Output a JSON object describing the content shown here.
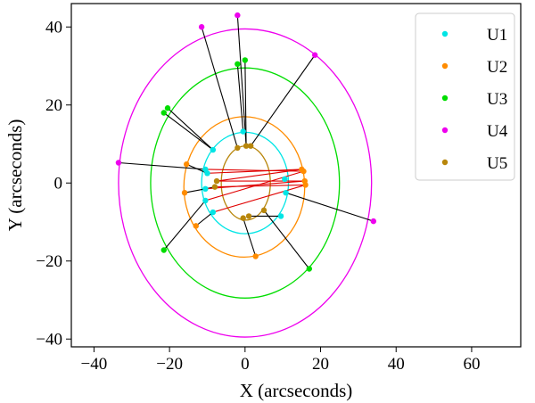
{
  "chart_data": {
    "type": "scatter",
    "xlabel": "X (arcseconds)",
    "ylabel": "Y (arcseconds)",
    "xlim": [
      -46,
      73
    ],
    "ylim": [
      -42,
      46
    ],
    "xticks": [
      -40,
      -20,
      0,
      20,
      40,
      60
    ],
    "yticks": [
      -40,
      -20,
      0,
      20,
      40
    ],
    "legend_position": "top-right",
    "orbit_ellipses": [
      {
        "series": "U1",
        "color": "#00e5e5",
        "center": [
          0,
          0
        ],
        "rx": 11.5,
        "ry": 13.0
      },
      {
        "series": "U2",
        "color": "#ff8c00",
        "center": [
          -0.2,
          -1.0
        ],
        "rx": 16.0,
        "ry": 18.0
      },
      {
        "series": "U3",
        "color": "#00dd00",
        "center": [
          0,
          0
        ],
        "rx": 25.0,
        "ry": 29.5
      },
      {
        "series": "U4",
        "color": "#ee00ee",
        "center": [
          0,
          0
        ],
        "rx": 33.5,
        "ry": 39.5
      },
      {
        "series": "U5",
        "color": "#b8860b",
        "center": [
          0.2,
          0
        ],
        "rx": 6.5,
        "ry": 9.5
      }
    ],
    "series": [
      {
        "name": "U1",
        "color": "#00e5e5",
        "points": [
          [
            -0.5,
            13.2
          ],
          [
            -8.5,
            8.5
          ],
          [
            -10.5,
            3.5
          ],
          [
            -10.5,
            -1.5
          ],
          [
            -8.5,
            -7.5
          ],
          [
            -10.5,
            -4.5
          ],
          [
            9.5,
            -8.5
          ],
          [
            10.5,
            1.0
          ],
          [
            10.8,
            -2.5
          ],
          [
            -10,
            2.5
          ]
        ]
      },
      {
        "name": "U2",
        "color": "#ff8c00",
        "points": [
          [
            -15.5,
            4.8
          ],
          [
            -16.0,
            -2.5
          ],
          [
            -13.0,
            -11.0
          ],
          [
            2.8,
            -18.8
          ],
          [
            15.8,
            0.5
          ],
          [
            15.0,
            3.5
          ],
          [
            16.0,
            -0.5
          ],
          [
            15.5,
            3.0
          ]
        ]
      },
      {
        "name": "U3",
        "color": "#00dd00",
        "points": [
          [
            -21.5,
            18.0
          ],
          [
            -20.5,
            19.2
          ],
          [
            -21.5,
            -17.2
          ],
          [
            -2.0,
            30.5
          ],
          [
            0.0,
            31.5
          ],
          [
            17.0,
            -22.0
          ]
        ]
      },
      {
        "name": "U4",
        "color": "#ee00ee",
        "points": [
          [
            -11.5,
            40.0
          ],
          [
            -2.0,
            43.0
          ],
          [
            18.5,
            32.8
          ],
          [
            -33.5,
            5.2
          ],
          [
            34.0,
            -9.8
          ]
        ]
      },
      {
        "name": "U5",
        "color": "#b8860b",
        "points": [
          [
            -2.0,
            9.0
          ],
          [
            0.3,
            9.5
          ],
          [
            1.5,
            9.5
          ],
          [
            -8.0,
            -1.0
          ],
          [
            -7.5,
            0.5
          ],
          [
            -0.5,
            -9.0
          ],
          [
            1.0,
            -8.5
          ],
          [
            5.0,
            -7.0
          ]
        ]
      }
    ],
    "black_connections": [
      [
        [
          -0.5,
          13.2
        ],
        [
          -0.5,
          13.2
        ]
      ],
      [
        [
          -11.5,
          40.0
        ],
        [
          -2.0,
          9.0
        ]
      ],
      [
        [
          -2.0,
          43.0
        ],
        [
          0.3,
          9.5
        ]
      ],
      [
        [
          18.5,
          32.8
        ],
        [
          1.5,
          9.5
        ]
      ],
      [
        [
          -2.0,
          30.5
        ],
        [
          -0.5,
          13.2
        ]
      ],
      [
        [
          0.0,
          31.5
        ],
        [
          0.3,
          9.5
        ]
      ],
      [
        [
          -21.5,
          18.0
        ],
        [
          -8.5,
          8.5
        ]
      ],
      [
        [
          -20.5,
          19.2
        ],
        [
          -8.5,
          8.5
        ]
      ],
      [
        [
          -33.5,
          5.2
        ],
        [
          -10.5,
          3.5
        ]
      ],
      [
        [
          -15.5,
          4.8
        ],
        [
          -10.0,
          2.5
        ]
      ],
      [
        [
          -16.0,
          -2.5
        ],
        [
          -10.5,
          -1.5
        ]
      ],
      [
        [
          -13.0,
          -11.0
        ],
        [
          -8.5,
          -7.5
        ]
      ],
      [
        [
          -21.5,
          -17.2
        ],
        [
          -10.5,
          -4.5
        ]
      ],
      [
        [
          2.8,
          -18.8
        ],
        [
          -0.5,
          -9.0
        ]
      ],
      [
        [
          17.0,
          -22.0
        ],
        [
          5.0,
          -7.0
        ]
      ],
      [
        [
          34.0,
          -9.8
        ],
        [
          10.8,
          -2.5
        ]
      ],
      [
        [
          9.5,
          -8.5
        ],
        [
          1.0,
          -8.5
        ]
      ],
      [
        [
          -8.0,
          -1.0
        ],
        [
          -10.5,
          -1.5
        ]
      ]
    ],
    "red_connections": [
      [
        [
          -7.5,
          0.5
        ],
        [
          15.8,
          0.5
        ]
      ],
      [
        [
          -7.5,
          0.5
        ],
        [
          15.0,
          3.5
        ]
      ],
      [
        [
          -8.0,
          -1.0
        ],
        [
          16.0,
          -0.5
        ]
      ],
      [
        [
          -10.5,
          3.5
        ],
        [
          15.5,
          3.0
        ]
      ],
      [
        [
          -10.0,
          2.5
        ],
        [
          15.0,
          3.5
        ]
      ],
      [
        [
          -10.5,
          -1.5
        ],
        [
          15.8,
          0.5
        ]
      ],
      [
        [
          -8.5,
          -7.5
        ],
        [
          16.0,
          -0.5
        ]
      ],
      [
        [
          -10.5,
          -4.5
        ],
        [
          15.5,
          3.0
        ]
      ]
    ],
    "legend": [
      {
        "label": "U1",
        "color": "#00e5e5"
      },
      {
        "label": "U2",
        "color": "#ff8c00"
      },
      {
        "label": "U3",
        "color": "#00dd00"
      },
      {
        "label": "U4",
        "color": "#ee00ee"
      },
      {
        "label": "U5",
        "color": "#b8860b"
      }
    ]
  }
}
